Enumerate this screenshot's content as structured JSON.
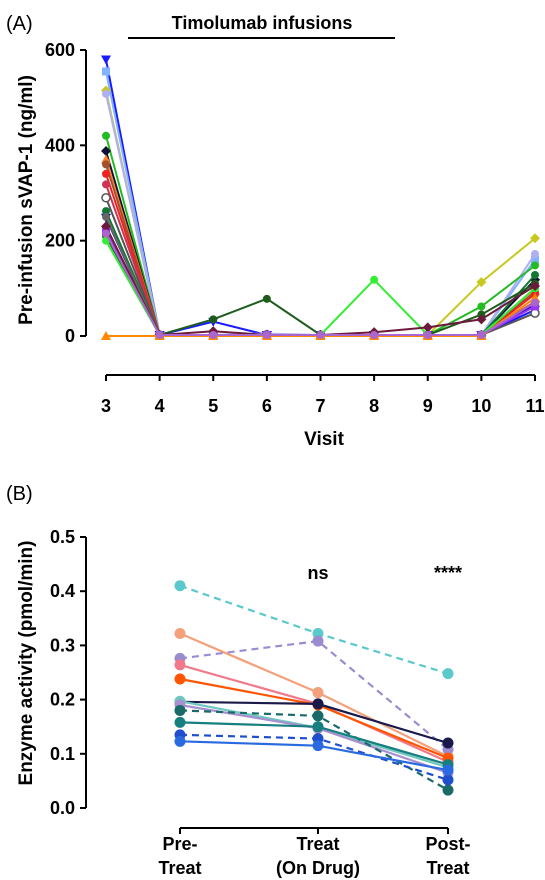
{
  "chart_data": [
    {
      "panel_label": "(A)",
      "type": "line",
      "annotation": "Timolumab infusions",
      "xlabel": "Visit",
      "ylabel": "Pre-infusion sVAP-1 (ng/ml)",
      "x": [
        3,
        4,
        5,
        6,
        7,
        8,
        9,
        10,
        11
      ],
      "xticks": [
        "3",
        "4",
        "5",
        "6",
        "7",
        "8",
        "9",
        "10",
        "11"
      ],
      "yticks": [
        "0",
        "200",
        "400",
        "600"
      ],
      "ylim": [
        0,
        600
      ],
      "grid": false,
      "series": [
        {
          "color": "#1a1aff",
          "marker": "triangle-down",
          "values": [
            580,
            2,
            30,
            2,
            2,
            2,
            2,
            2,
            55
          ]
        },
        {
          "color": "#80b3ff",
          "marker": "square",
          "values": [
            555,
            2,
            2,
            2,
            2,
            2,
            2,
            2,
            160
          ]
        },
        {
          "color": "#c8c820",
          "marker": "diamond",
          "values": [
            515,
            2,
            2,
            2,
            2,
            2,
            2,
            113,
            205
          ]
        },
        {
          "color": "#b0b0f0",
          "marker": "circle",
          "values": [
            508,
            2,
            2,
            5,
            2,
            2,
            2,
            2,
            172
          ]
        },
        {
          "color": "#22bb22",
          "marker": "circle",
          "values": [
            420,
            2,
            2,
            2,
            2,
            2,
            2,
            62,
            148
          ]
        },
        {
          "color": "#111133",
          "marker": "diamond",
          "values": [
            388,
            2,
            2,
            2,
            2,
            2,
            2,
            2,
            118
          ]
        },
        {
          "color": "#ff7f2a",
          "marker": "triangle",
          "values": [
            370,
            2,
            2,
            2,
            2,
            2,
            2,
            2,
            95
          ]
        },
        {
          "color": "#a0522d",
          "marker": "circle",
          "values": [
            360,
            2,
            2,
            2,
            2,
            2,
            2,
            2,
            92
          ]
        },
        {
          "color": "#ee2222",
          "marker": "circle",
          "values": [
            340,
            2,
            2,
            2,
            2,
            2,
            2,
            2,
            88
          ]
        },
        {
          "color": "#cc3355",
          "marker": "circle",
          "values": [
            318,
            2,
            2,
            2,
            2,
            2,
            2,
            2,
            72
          ]
        },
        {
          "color": "#555555",
          "marker": "circle-open",
          "values": [
            290,
            2,
            2,
            2,
            2,
            2,
            2,
            2,
            48
          ]
        },
        {
          "color": "#117733",
          "marker": "circle",
          "values": [
            262,
            2,
            2,
            2,
            2,
            2,
            2,
            2,
            128
          ]
        },
        {
          "color": "#000099",
          "marker": "triangle-down",
          "values": [
            248,
            2,
            2,
            2,
            2,
            2,
            2,
            2,
            65
          ]
        },
        {
          "color": "#9933ff",
          "marker": "square",
          "values": [
            220,
            2,
            2,
            2,
            2,
            2,
            2,
            2,
            62
          ]
        },
        {
          "color": "#666666",
          "marker": "circle",
          "values": [
            250,
            2,
            2,
            2,
            2,
            2,
            2,
            2,
            100
          ]
        },
        {
          "color": "#1e5c1e",
          "marker": "circle",
          "values": [
            210,
            2,
            35,
            78,
            2,
            2,
            2,
            45,
            110
          ]
        },
        {
          "color": "#33ee33",
          "marker": "circle",
          "values": [
            200,
            2,
            2,
            2,
            2,
            118,
            2,
            2,
            100
          ]
        },
        {
          "color": "#6b1a3a",
          "marker": "diamond",
          "values": [
            230,
            2,
            10,
            2,
            2,
            8,
            18,
            35,
            105
          ]
        },
        {
          "color": "#ff8800",
          "marker": "triangle",
          "values": [
            0,
            0,
            0,
            0,
            0,
            0,
            0,
            0,
            80
          ]
        },
        {
          "color": "#aa66cc",
          "marker": "circle",
          "values": [
            215,
            2,
            2,
            2,
            2,
            2,
            2,
            2,
            70
          ]
        }
      ]
    },
    {
      "panel_label": "(B)",
      "type": "line",
      "ylabel": "Enzyme activity (pmol/min)",
      "categories": [
        "Pre-\nTreat",
        "Treat\n(On Drug)",
        "Post-\nTreat"
      ],
      "yticks": [
        "0.0",
        "0.1",
        "0.2",
        "0.3",
        "0.4",
        "0.5"
      ],
      "ylim": [
        0.0,
        0.5
      ],
      "grid": false,
      "annotations": [
        {
          "text": "ns",
          "category": 1
        },
        {
          "text": "****",
          "category": 2
        }
      ],
      "series": [
        {
          "color": "#5bc8cc",
          "style": "dashed",
          "values": [
            0.41,
            0.322,
            0.248
          ]
        },
        {
          "color": "#f4a07a",
          "style": "solid",
          "values": [
            0.322,
            0.213,
            0.095
          ]
        },
        {
          "color": "#9b8bd0",
          "style": "dashed",
          "values": [
            0.276,
            0.308,
            0.108
          ]
        },
        {
          "color": "#f07a8a",
          "style": "solid",
          "values": [
            0.264,
            0.192,
            0.085
          ]
        },
        {
          "color": "#ff5500",
          "style": "solid",
          "values": [
            0.238,
            0.19,
            0.092
          ]
        },
        {
          "color": "#1a1a4a",
          "style": "solid",
          "values": [
            0.196,
            0.192,
            0.12
          ]
        },
        {
          "color": "#6fc7c0",
          "style": "solid",
          "values": [
            0.197,
            0.148,
            0.075
          ]
        },
        {
          "color": "#a78fd0",
          "style": "solid",
          "values": [
            0.19,
            0.147,
            0.065
          ]
        },
        {
          "color": "#1a6a6a",
          "style": "dashed",
          "values": [
            0.18,
            0.17,
            0.033
          ]
        },
        {
          "color": "#177f7f",
          "style": "solid",
          "values": [
            0.158,
            0.15,
            0.08
          ]
        },
        {
          "color": "#1f4fcc",
          "style": "dashed",
          "values": [
            0.135,
            0.128,
            0.052
          ]
        },
        {
          "color": "#2a6ae0",
          "style": "solid",
          "values": [
            0.123,
            0.115,
            0.07
          ]
        }
      ]
    }
  ]
}
